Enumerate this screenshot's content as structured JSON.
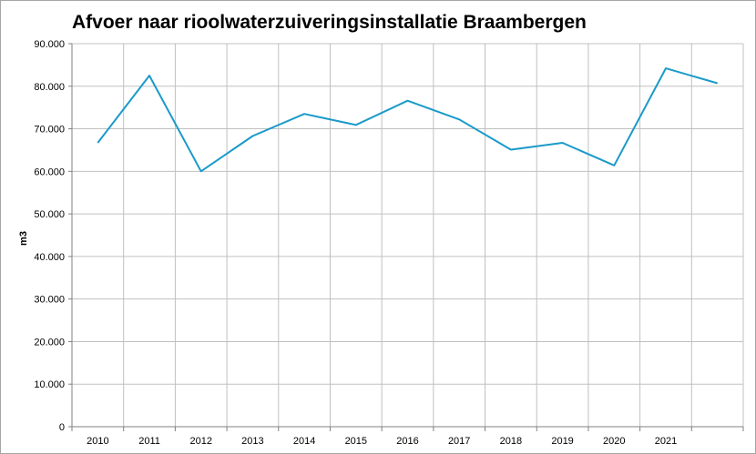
{
  "chart_data": {
    "type": "line",
    "title": "Afvoer naar rioolwaterzuiveringsinstallatie Braambergen",
    "ylabel": "m3",
    "xlabel": "",
    "categories": [
      "2010",
      "2011",
      "2012",
      "2013",
      "2014",
      "2015",
      "2016",
      "2017",
      "2018",
      "2019",
      "2020",
      "2021",
      ""
    ],
    "series": [
      {
        "values": [
          66700,
          82500,
          60000,
          68300,
          73500,
          70900,
          76600,
          72200,
          65100,
          66700,
          61400,
          84200,
          80700
        ]
      }
    ],
    "ylim": [
      0,
      90000
    ],
    "yticks": [
      0,
      10000,
      20000,
      30000,
      40000,
      50000,
      60000,
      70000,
      80000,
      90000
    ],
    "ytick_labels": [
      "0",
      "10.000",
      "20.000",
      "30.000",
      "40.000",
      "50.000",
      "60.000",
      "70.000",
      "80.000",
      "90.000"
    ],
    "grid": true,
    "line_color": "#1a9ac9",
    "grid_color": "#c0c0c0"
  }
}
